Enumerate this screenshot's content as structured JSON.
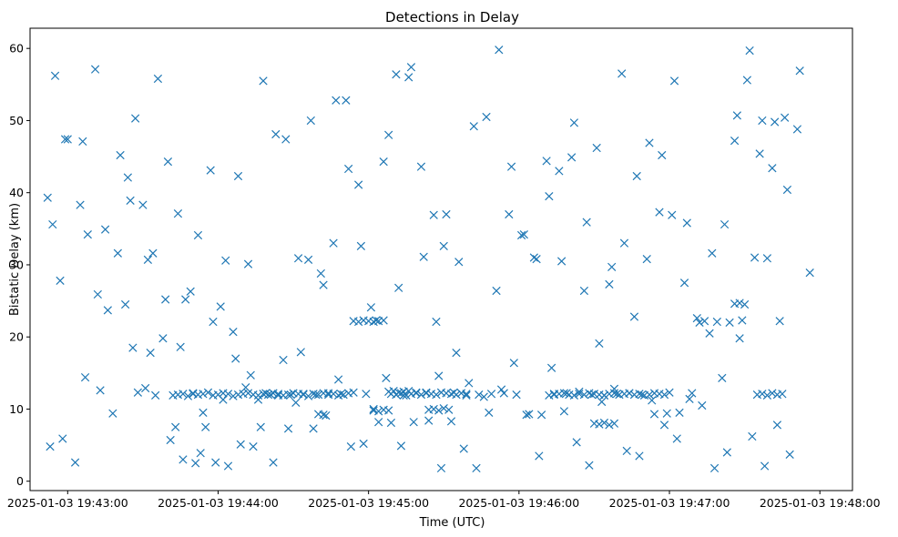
{
  "chart_data": {
    "type": "scatter",
    "title": "Detections in Delay",
    "xlabel": "Time (UTC)",
    "ylabel": "Bistatic Delay (km)",
    "x_ticks": [
      "2025-01-03 19:43:00",
      "2025-01-03 19:44:00",
      "2025-01-03 19:45:00",
      "2025-01-03 19:46:00",
      "2025-01-03 19:47:00",
      "2025-01-03 19:48:00"
    ],
    "y_ticks": [
      "0",
      "10",
      "20",
      "30",
      "40",
      "50",
      "60"
    ],
    "xlim": [
      "2025-01-03 19:42:45",
      "2025-01-03 19:48:13"
    ],
    "ylim": [
      -1.3,
      62.8
    ],
    "grid": false,
    "marker": "x",
    "color": "#1f77b4",
    "series": [
      {
        "x": [
          "19:42:52",
          "19:42:54",
          "19:42:57",
          "19:42:59",
          "19:43:05",
          "19:43:08",
          "19:43:12",
          "19:43:16",
          "19:43:21",
          "19:43:24",
          "19:43:27",
          "19:43:32",
          "19:43:36",
          "19:43:40",
          "19:43:44",
          "19:43:49",
          "19:43:52",
          "19:43:57",
          "19:44:03",
          "19:44:08",
          "19:44:12",
          "19:44:18",
          "19:44:23",
          "19:44:27",
          "19:44:32",
          "19:44:37",
          "19:44:42",
          "19:44:46",
          "19:44:52",
          "19:44:57",
          "19:45:03",
          "19:45:08",
          "19:45:12",
          "19:45:17",
          "19:45:22",
          "19:45:27",
          "19:45:31",
          "19:45:36",
          "19:45:42",
          "19:45:47",
          "19:45:52",
          "19:45:57",
          "19:46:02",
          "19:46:06",
          "19:46:12",
          "19:46:17",
          "19:46:21",
          "19:46:26",
          "19:46:31",
          "19:46:36",
          "19:46:42",
          "19:46:46",
          "19:46:52",
          "19:46:57",
          "19:47:01",
          "19:47:06",
          "19:47:11",
          "19:47:17",
          "19:47:22",
          "19:47:27",
          "19:47:32",
          "19:47:36",
          "19:47:41",
          "19:47:47",
          "19:47:52",
          "19:47:56",
          "19:42:53",
          "19:42:58",
          "19:43:03",
          "19:43:07",
          "19:43:13",
          "19:43:18",
          "19:43:23",
          "19:43:28",
          "19:43:33",
          "19:43:38",
          "19:43:43",
          "19:43:47",
          "19:43:53",
          "19:43:58",
          "19:44:02",
          "19:44:07",
          "19:44:13",
          "19:44:17",
          "19:44:22",
          "19:44:28",
          "19:44:33",
          "19:44:38",
          "19:44:43",
          "19:44:48",
          "19:44:53",
          "19:44:58",
          "19:45:02",
          "19:45:07",
          "19:45:13",
          "19:45:18",
          "19:45:23",
          "19:45:28",
          "19:45:33",
          "19:45:38",
          "19:45:43",
          "19:45:48",
          "19:45:53",
          "19:45:58",
          "19:46:03",
          "19:46:08",
          "19:46:13",
          "19:46:18",
          "19:46:23",
          "19:46:28",
          "19:46:33",
          "19:46:38",
          "19:46:43",
          "19:46:48",
          "19:46:53",
          "19:46:58",
          "19:47:03",
          "19:47:08",
          "19:47:13",
          "19:47:18",
          "19:47:23",
          "19:47:28",
          "19:47:33",
          "19:47:38",
          "19:47:43",
          "19:47:48",
          "19:42:55",
          "19:43:00",
          "19:43:06",
          "19:43:11",
          "19:43:15",
          "19:43:20",
          "19:43:26",
          "19:43:31",
          "19:43:35",
          "19:43:41",
          "19:43:46",
          "19:43:51",
          "19:43:55",
          "19:44:01",
          "19:44:06",
          "19:44:11",
          "19:44:16",
          "19:44:21",
          "19:44:26",
          "19:44:31",
          "19:44:36",
          "19:44:41",
          "19:44:47",
          "19:44:51",
          "19:44:56",
          "19:45:01",
          "19:45:06",
          "19:45:11",
          "19:45:16",
          "19:45:21",
          "19:45:26",
          "19:45:30",
          "19:45:35",
          "19:45:40",
          "19:45:46",
          "19:45:51",
          "19:45:56",
          "19:46:01",
          "19:46:07",
          "19:46:11",
          "19:46:16",
          "19:46:22",
          "19:46:27",
          "19:46:32",
          "19:46:37",
          "19:46:41",
          "19:46:47",
          "19:46:51",
          "19:46:56",
          "19:47:02",
          "19:47:07",
          "19:47:12",
          "19:47:16",
          "19:47:21",
          "19:47:26",
          "19:47:31",
          "19:47:37",
          "19:47:42",
          "19:47:46",
          "19:47:51",
          "19:43:25",
          "19:43:30",
          "19:43:34",
          "19:43:39",
          "19:43:45",
          "19:43:50",
          "19:43:54",
          "19:43:59",
          "19:44:04",
          "19:44:09",
          "19:44:14",
          "19:44:19",
          "19:44:24",
          "19:44:29",
          "19:44:34",
          "19:44:39",
          "19:44:44",
          "19:44:49",
          "19:44:54",
          "19:44:59",
          "19:45:04",
          "19:45:09",
          "19:45:14",
          "19:45:19",
          "19:45:24",
          "19:45:29",
          "19:45:34",
          "19:45:39",
          "19:45:44",
          "19:45:49",
          "19:45:54",
          "19:45:59",
          "19:46:04",
          "19:46:09",
          "19:46:14",
          "19:46:19",
          "19:46:24",
          "19:46:29",
          "19:46:34",
          "19:46:39",
          "19:46:44",
          "19:46:49",
          "19:46:54",
          "19:46:59",
          "19:47:04",
          "19:47:09",
          "19:47:14",
          "19:47:19",
          "19:47:24",
          "19:47:29",
          "19:47:34",
          "19:47:39",
          "19:47:44",
          "19:43:42",
          "19:43:44",
          "19:43:46",
          "19:43:48",
          "19:43:50",
          "19:43:52",
          "19:43:54",
          "19:43:56",
          "19:43:58",
          "19:44:00",
          "19:44:02",
          "19:44:04",
          "19:44:06",
          "19:44:08",
          "19:44:10",
          "19:44:12",
          "19:44:14",
          "19:44:16",
          "19:44:18",
          "19:44:20",
          "19:44:22",
          "19:44:24",
          "19:44:26",
          "19:44:28",
          "19:44:30",
          "19:44:32",
          "19:44:34",
          "19:44:36",
          "19:44:38",
          "19:44:40",
          "19:44:42",
          "19:44:44",
          "19:44:46",
          "19:44:48",
          "19:44:50",
          "19:44:52",
          "19:45:09",
          "19:45:11",
          "19:45:13",
          "19:45:15",
          "19:45:17",
          "19:45:19",
          "19:45:21",
          "19:45:23",
          "19:45:25",
          "19:45:27",
          "19:45:29",
          "19:45:31",
          "19:45:33",
          "19:45:35",
          "19:45:37",
          "19:45:39",
          "19:46:12",
          "19:46:14",
          "19:46:16",
          "19:46:18",
          "19:46:20",
          "19:46:22",
          "19:46:24",
          "19:46:26",
          "19:46:28",
          "19:46:30",
          "19:46:32",
          "19:46:34",
          "19:46:36",
          "19:46:38",
          "19:46:40",
          "19:46:42",
          "19:46:44",
          "19:46:46",
          "19:46:48",
          "19:46:50",
          "19:46:52",
          "19:46:54",
          "19:46:56",
          "19:46:58",
          "19:47:00",
          "19:47:35",
          "19:47:37",
          "19:47:39",
          "19:47:41",
          "19:47:43",
          "19:47:45",
          "19:44:54",
          "19:44:56",
          "19:44:58",
          "19:45:00",
          "19:45:02",
          "19:45:04",
          "19:45:06",
          "19:44:40",
          "19:44:42",
          "19:45:02",
          "19:45:04",
          "19:45:06",
          "19:45:08",
          "19:45:24",
          "19:45:26",
          "19:45:28",
          "19:45:30",
          "19:45:32",
          "19:46:30",
          "19:46:32",
          "19:46:34",
          "19:46:36",
          "19:46:38",
          "19:45:08",
          "19:45:10",
          "19:45:12",
          "19:45:14",
          "19:45:16",
          "19:47:26",
          "19:47:28",
          "19:47:30"
        ],
        "y": [
          39.3,
          35.6,
          27.8,
          47.4,
          38.3,
          34.2,
          25.9,
          23.7,
          45.2,
          42.1,
          50.3,
          30.7,
          55.8,
          44.3,
          37.1,
          26.3,
          34.1,
          43.1,
          30.6,
          42.3,
          30.1,
          55.5,
          48.1,
          47.4,
          30.9,
          50.0,
          27.2,
          33.0,
          43.3,
          32.6,
          22.3,
          48.0,
          26.8,
          57.4,
          31.1,
          22.1,
          37.0,
          30.4,
          49.2,
          50.5,
          59.8,
          43.6,
          34.2,
          31.0,
          39.5,
          30.5,
          44.9,
          26.4,
          46.2,
          27.3,
          33.0,
          22.8,
          46.9,
          45.2,
          36.9,
          27.5,
          22.6,
          31.6,
          35.6,
          50.7,
          59.7,
          45.4,
          43.4,
          40.4,
          56.9,
          28.9,
          4.8,
          5.9,
          2.6,
          14.4,
          12.6,
          9.4,
          24.5,
          12.3,
          17.8,
          19.8,
          7.5,
          25.2,
          3.9,
          22.1,
          11.3,
          17.0,
          14.7,
          7.5,
          2.6,
          7.3,
          17.9,
          7.3,
          9.1,
          14.1,
          4.8,
          5.2,
          10.0,
          14.3,
          4.9,
          8.2,
          12.3,
          14.6,
          8.3,
          4.5,
          1.8,
          9.5,
          12.7,
          16.4,
          9.2,
          3.5,
          15.7,
          9.7,
          5.4,
          2.2,
          11.0,
          12.8,
          4.2,
          3.5,
          11.2,
          7.8,
          5.9,
          11.4,
          10.5,
          1.8,
          4.0,
          19.8,
          6.2,
          2.1,
          7.8,
          3.7,
          56.2,
          47.4,
          47.1,
          57.1,
          34.9,
          31.6,
          18.5,
          12.9,
          11.9,
          5.7,
          3.0,
          2.5,
          7.5,
          24.2,
          20.7,
          13.0,
          11.3,
          12.0,
          16.8,
          10.9,
          30.7,
          28.8,
          52.8,
          52.8,
          41.1,
          24.1,
          44.3,
          56.4,
          56.0,
          43.6,
          36.9,
          32.6,
          17.8,
          13.6,
          11.7,
          26.4,
          37.0,
          34.1,
          30.8,
          44.4,
          43.0,
          49.7,
          35.9,
          19.1,
          29.7,
          56.5,
          42.3,
          30.8,
          37.3,
          55.5,
          35.8,
          22.0,
          20.5,
          14.3,
          47.2,
          55.6,
          50.0,
          49.8,
          50.4,
          48.8,
          38.9,
          38.3,
          31.6,
          25.2,
          18.6,
          12.1,
          9.5,
          2.6,
          2.1,
          5.1,
          4.8,
          12.2,
          11.9,
          12.0,
          12.1,
          12.0,
          12.2,
          12.1,
          12.3,
          12.1,
          8.2,
          8.1,
          11.9,
          12.2,
          8.4,
          1.8,
          12.3,
          11.9,
          12.0,
          12.1,
          12.2,
          12.0,
          9.3,
          9.2,
          12.1,
          12.2,
          12.4,
          12.0,
          11.9,
          12.1,
          12.2,
          12.0,
          9.3,
          9.4,
          9.5,
          12.2,
          22.2,
          22.1,
          22.0,
          22.3,
          31.0,
          30.9,
          22.2,
          11.9,
          12.0,
          12.1,
          11.8,
          12.2,
          12.0,
          12.1,
          12.3,
          11.9,
          12.0,
          12.2,
          12.1,
          11.8,
          12.0,
          12.1,
          12.2,
          12.0,
          11.9,
          12.1,
          12.0,
          12.2,
          12.1,
          11.9,
          12.0,
          12.2,
          12.1,
          12.0,
          11.8,
          12.1,
          12.0,
          12.2,
          12.0,
          12.1,
          11.9,
          12.0,
          12.2,
          12.1,
          12.0,
          12.2,
          11.9,
          12.1,
          12.3,
          12.0,
          12.2,
          12.1,
          12.0,
          12.3,
          12.2,
          12.1,
          12.0,
          12.2,
          12.1,
          11.9,
          12.0,
          12.1,
          12.2,
          12.0,
          11.9,
          12.1,
          12.0,
          12.2,
          12.1,
          12.0,
          11.9,
          12.1,
          12.2,
          12.0,
          12.1,
          12.2,
          12.0,
          12.1,
          11.9,
          12.0,
          12.2,
          12.1,
          12.0,
          12.3,
          12.0,
          12.1,
          11.9,
          12.2,
          12.0,
          12.1,
          22.2,
          22.1,
          22.3,
          22.2,
          22.1,
          22.2,
          22.3,
          9.3,
          9.2,
          9.8,
          9.7,
          9.9,
          9.8,
          9.9,
          10.0,
          9.8,
          10.1,
          9.9,
          8.0,
          7.9,
          8.1,
          7.8,
          8.0,
          12.4,
          12.5,
          12.3,
          12.4,
          12.5,
          24.6,
          24.7,
          24.5
        ]
      }
    ]
  }
}
